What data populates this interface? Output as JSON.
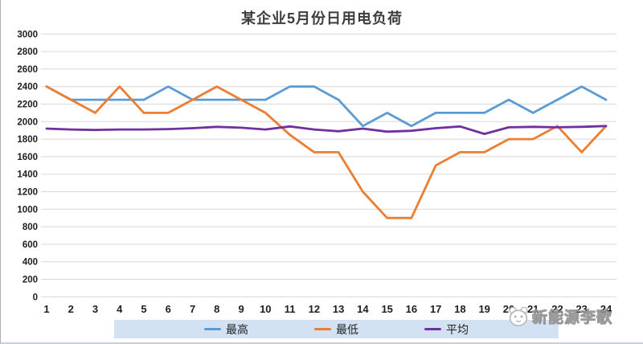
{
  "title": "某企业5月份日用电负荷",
  "watermark": {
    "text": "新能源李歌",
    "logo_icon": "panda-face-icon"
  },
  "legend": {
    "background": "#D3E2F2",
    "position": "bottom"
  },
  "chart_data": {
    "type": "line",
    "title": "某企业5月份日用电负荷",
    "xlabel": "",
    "ylabel": "",
    "x": [
      1,
      2,
      3,
      4,
      5,
      6,
      7,
      8,
      9,
      10,
      11,
      12,
      13,
      14,
      15,
      16,
      17,
      18,
      19,
      20,
      21,
      22,
      23,
      24
    ],
    "ylim": [
      0,
      3000
    ],
    "y_ticks": [
      0,
      200,
      400,
      600,
      800,
      1000,
      1200,
      1400,
      1600,
      1800,
      2000,
      2200,
      2400,
      2600,
      2800,
      3000
    ],
    "grid": true,
    "grid_color": "#d8d8d8",
    "legend_position": "bottom",
    "series": [
      {
        "name": "最高",
        "id": "high",
        "color": "#5B9BD5",
        "values": [
          2400,
          2250,
          2250,
          2250,
          2250,
          2400,
          2250,
          2250,
          2250,
          2250,
          2400,
          2400,
          2250,
          1950,
          2100,
          1950,
          2100,
          2100,
          2100,
          2250,
          2100,
          2250,
          2400,
          2250
        ]
      },
      {
        "name": "最低",
        "id": "low",
        "color": "#ED7D31",
        "values": [
          2400,
          2250,
          2100,
          2400,
          2100,
          2100,
          2250,
          2400,
          2250,
          2100,
          1850,
          1650,
          1650,
          1200,
          900,
          900,
          1500,
          1650,
          1650,
          1800,
          1800,
          1950,
          1650,
          1950
        ]
      },
      {
        "name": "平均",
        "id": "avg",
        "color": "#7030A0",
        "values": [
          1920,
          1910,
          1905,
          1910,
          1910,
          1915,
          1925,
          1940,
          1930,
          1910,
          1945,
          1910,
          1890,
          1920,
          1885,
          1895,
          1925,
          1945,
          1860,
          1935,
          1940,
          1935,
          1940,
          1950
        ]
      }
    ]
  }
}
